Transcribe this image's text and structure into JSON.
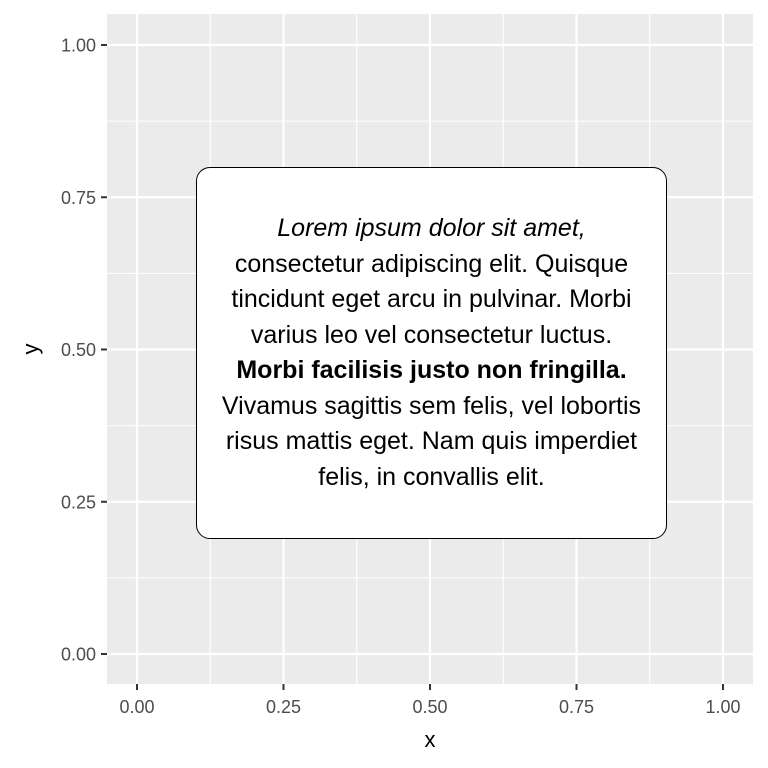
{
  "chart_data": {
    "type": "scatter",
    "title": "",
    "xlabel": "x",
    "ylabel": "y",
    "xlim": [
      0,
      1
    ],
    "ylim": [
      0,
      1
    ],
    "x_ticks": [
      0,
      0.25,
      0.5,
      0.75,
      1
    ],
    "x_tick_labels": [
      "0.00",
      "0.25",
      "0.50",
      "0.75",
      "1.00"
    ],
    "y_ticks": [
      0,
      0.25,
      0.5,
      0.75,
      1
    ],
    "y_tick_labels": [
      "0.00",
      "0.25",
      "0.50",
      "0.75",
      "1.00"
    ],
    "grid": true,
    "panel_background": "#ebebeb",
    "grid_color": "#ffffff",
    "annotation": {
      "x": 0.5,
      "y": 0.5,
      "segments": [
        {
          "style": "italic",
          "text": "Lorem ipsum dolor sit amet,"
        },
        {
          "style": "normal",
          "text": " consectetur adipiscing elit. Quisque tincidunt eget arcu in pulvinar. Morbi varius leo vel consectetur luctus. "
        },
        {
          "style": "bold",
          "text": "Morbi facilisis justo non fringilla."
        },
        {
          "style": "normal",
          "text": " Vivamus sagittis sem felis, vel lobortis risus mattis eget. Nam quis imperdiet felis, in convallis elit."
        }
      ]
    }
  }
}
